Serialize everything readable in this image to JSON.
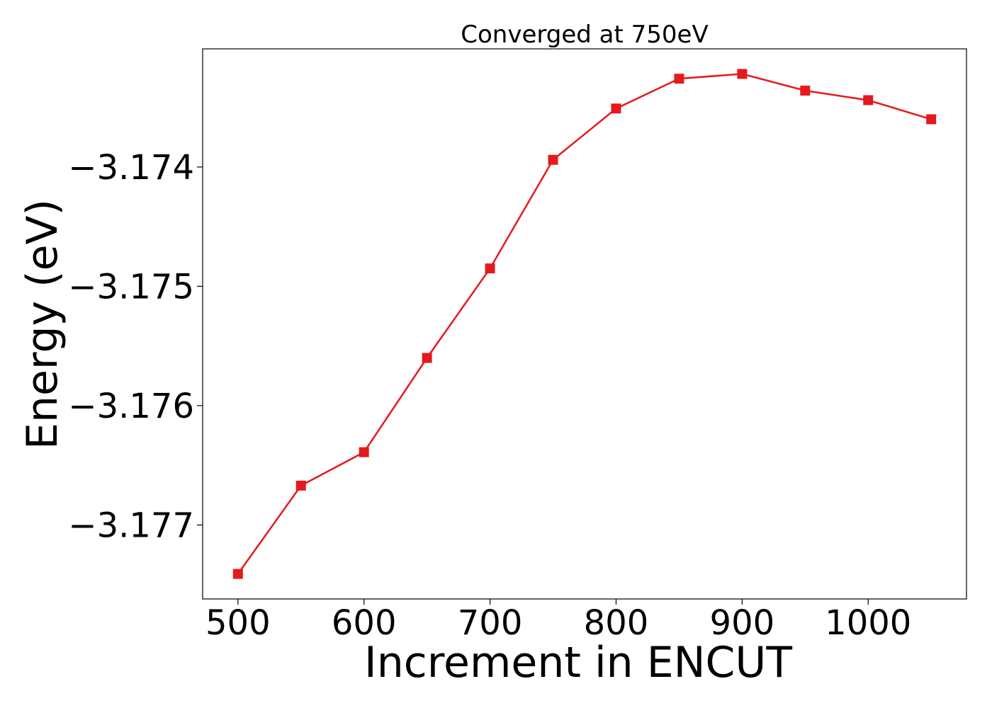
{
  "chart_data": {
    "type": "line",
    "title": "Converged at 750eV",
    "xlabel": "Increment in ENCUT",
    "ylabel": "Energy (eV)",
    "x": [
      500,
      550,
      600,
      650,
      700,
      750,
      800,
      850,
      900,
      950,
      1000,
      1050
    ],
    "series": [
      {
        "values": [
          -3.17741,
          -3.17667,
          -3.17639,
          -3.1756,
          -3.17485,
          -3.17394,
          -3.17351,
          -3.17326,
          -3.17322,
          -3.17336,
          -3.17344,
          -3.1736
        ],
        "color": "#e41a1c",
        "marker": "square"
      }
    ],
    "xlim": [
      472,
      1078
    ],
    "ylim": [
      -3.17762,
      -3.17301
    ],
    "xticks": [
      500,
      600,
      700,
      800,
      900,
      1000
    ],
    "xtick_labels": [
      "500",
      "600",
      "700",
      "800",
      "900",
      "1000"
    ],
    "yticks": [
      -3.174,
      -3.175,
      -3.176,
      -3.177
    ],
    "ytick_labels": [
      "−3.174",
      "−3.175",
      "−3.176",
      "−3.177"
    ],
    "grid": false,
    "legend": "none"
  }
}
